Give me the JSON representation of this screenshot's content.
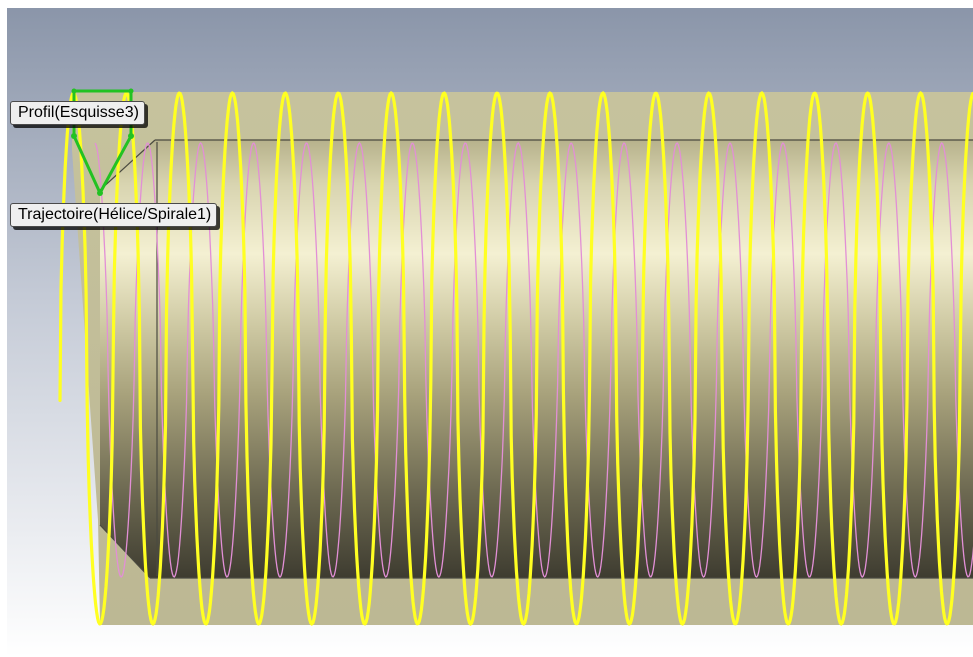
{
  "viewport": {
    "background_top": "#8994a8",
    "background_bottom": "#ffffff"
  },
  "colors": {
    "cylinder_light": "#f4f0d2",
    "cylinder_mid": "#a8a27c",
    "cylinder_dark": "#3e3c30",
    "cylinder_edge": "#4a4a40",
    "thread_profile": "#ffff22",
    "helix_path": "#e28fd6",
    "sketch": "#22c222"
  },
  "helix": {
    "icon": "helix-sweep-preview",
    "visible_turns": 16.5
  },
  "callouts": {
    "profile_label": "Profil(Esquisse3)",
    "path_label": "Trajectoire(Hélice/Spirale1)"
  }
}
